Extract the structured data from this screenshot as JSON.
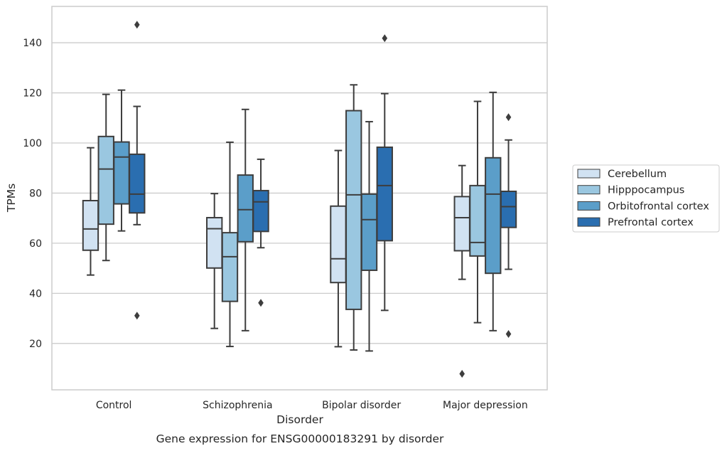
{
  "chart_data": {
    "type": "box",
    "caption": "Gene expression for ENSG00000183291 by disorder",
    "xlabel": "Disorder",
    "ylabel": "TPMs",
    "ylim": [
      1.5,
      154.5
    ],
    "yticks": [
      20,
      40,
      60,
      80,
      100,
      120,
      140
    ],
    "grid": "horizontal",
    "legend_position": "right",
    "categories": [
      "Control",
      "Schizophrenia",
      "Bipolar disorder",
      "Major depression"
    ],
    "series": [
      {
        "name": "Cerebellum",
        "color": "#d1e2f2",
        "boxes": [
          {
            "whislo": 47.3,
            "q1": 57.2,
            "med": 65.7,
            "q3": 77.0,
            "whishi": 98.1,
            "fliers": []
          },
          {
            "whislo": 26.0,
            "q1": 50.1,
            "med": 65.8,
            "q3": 70.2,
            "whishi": 79.8,
            "fliers": []
          },
          {
            "whislo": 18.7,
            "q1": 44.3,
            "med": 53.8,
            "q3": 74.8,
            "whishi": 97.0,
            "fliers": []
          },
          {
            "whislo": 45.6,
            "q1": 57.0,
            "med": 70.2,
            "q3": 78.6,
            "whishi": 91.0,
            "fliers": [
              7.9
            ]
          }
        ]
      },
      {
        "name": "Hipppocampus",
        "color": "#9ac7e0",
        "boxes": [
          {
            "whislo": 53.1,
            "q1": 67.6,
            "med": 89.6,
            "q3": 102.6,
            "whishi": 119.4,
            "fliers": []
          },
          {
            "whislo": 18.8,
            "q1": 36.8,
            "med": 54.6,
            "q3": 64.2,
            "whishi": 100.3,
            "fliers": []
          },
          {
            "whislo": 17.4,
            "q1": 33.6,
            "med": 79.3,
            "q3": 112.9,
            "whishi": 123.2,
            "fliers": []
          },
          {
            "whislo": 28.3,
            "q1": 54.9,
            "med": 60.3,
            "q3": 83.0,
            "whishi": 116.6,
            "fliers": []
          }
        ]
      },
      {
        "name": "Orbitofrontal cortex",
        "color": "#5b9ec9",
        "boxes": [
          {
            "whislo": 64.9,
            "q1": 75.7,
            "med": 94.4,
            "q3": 100.4,
            "whishi": 121.1,
            "fliers": []
          },
          {
            "whislo": 25.1,
            "q1": 60.6,
            "med": 73.4,
            "q3": 87.2,
            "whishi": 113.4,
            "fliers": []
          },
          {
            "whislo": 17.0,
            "q1": 49.2,
            "med": 69.4,
            "q3": 79.6,
            "whishi": 108.5,
            "fliers": []
          },
          {
            "whislo": 25.1,
            "q1": 48.0,
            "med": 79.6,
            "q3": 94.1,
            "whishi": 120.2,
            "fliers": []
          }
        ]
      },
      {
        "name": "Prefrontal cortex",
        "color": "#2a6eb0",
        "boxes": [
          {
            "whislo": 67.4,
            "q1": 72.1,
            "med": 79.6,
            "q3": 95.5,
            "whishi": 114.6,
            "fliers": [
              147.2,
              31.1
            ]
          },
          {
            "whislo": 58.2,
            "q1": 64.7,
            "med": 76.5,
            "q3": 81.0,
            "whishi": 93.5,
            "fliers": [
              36.2
            ]
          },
          {
            "whislo": 33.2,
            "q1": 61.0,
            "med": 83.0,
            "q3": 98.3,
            "whishi": 119.7,
            "fliers": [
              141.8
            ]
          },
          {
            "whislo": 49.6,
            "q1": 66.3,
            "med": 74.6,
            "q3": 80.7,
            "whishi": 101.2,
            "fliers": [
              110.3,
              23.8
            ]
          }
        ]
      }
    ]
  }
}
